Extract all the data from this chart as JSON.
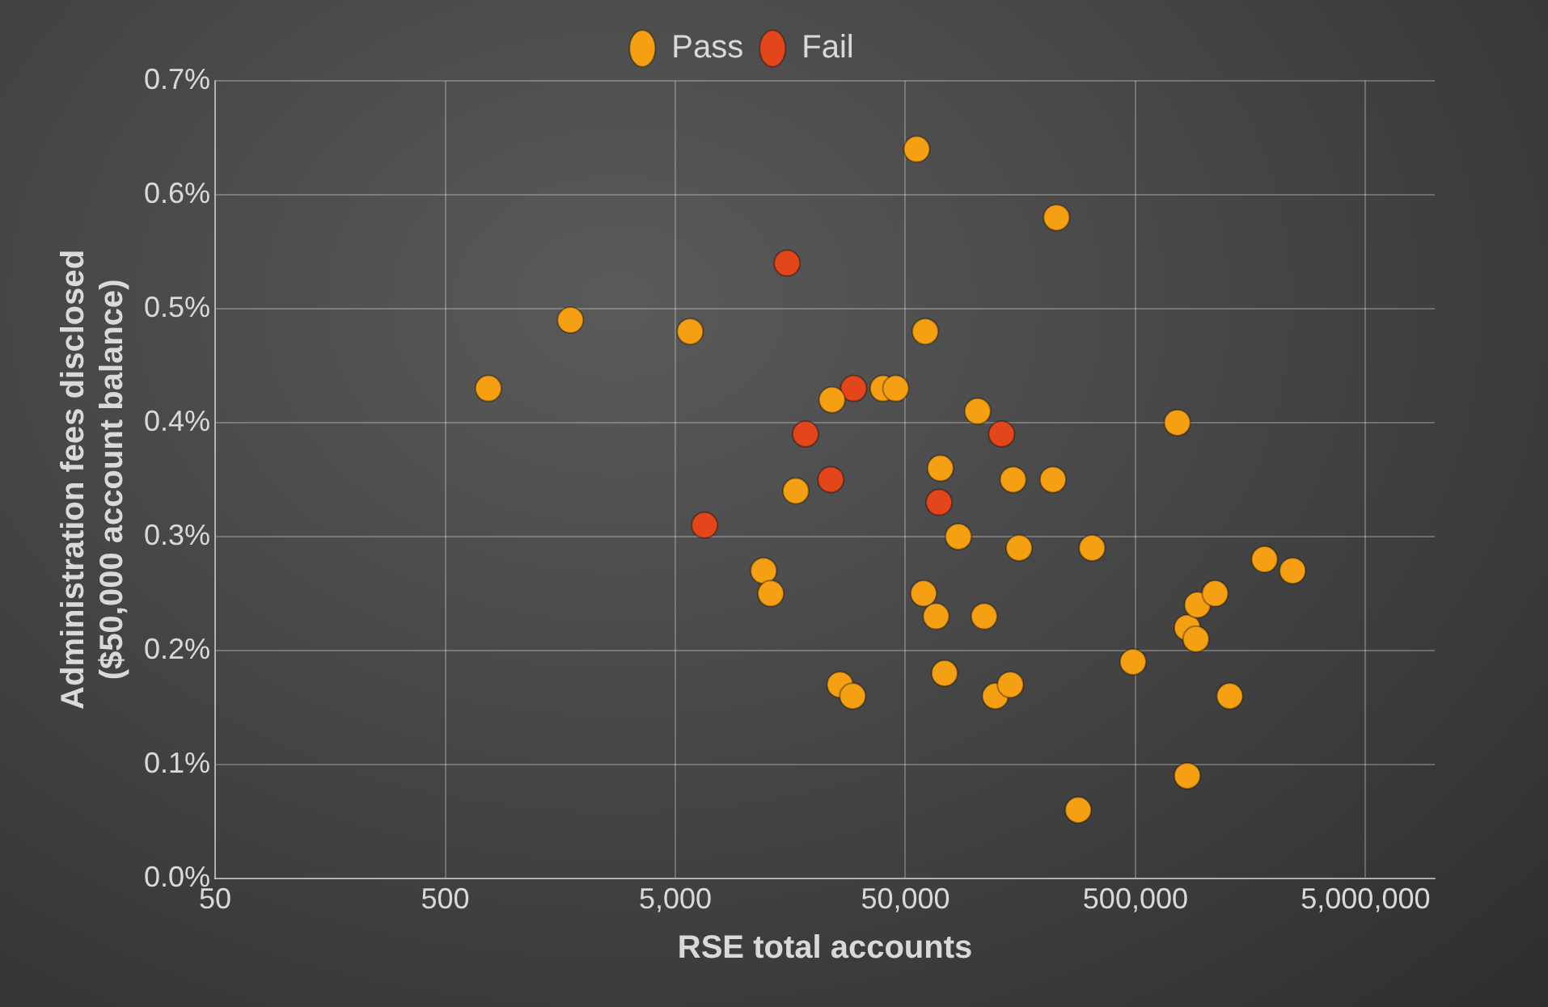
{
  "chart_data": {
    "type": "scatter",
    "xlabel": "RSE total accounts",
    "ylabel": "Administration fees disclosed ($50,000 account balance)",
    "log": "x",
    "xlim": [
      50,
      10000000
    ],
    "xticks": [
      50,
      500,
      {
        "value": 5000,
        "label": "5,000"
      },
      {
        "value": 50000,
        "label": "50,000"
      },
      {
        "value": 500000,
        "label": "500,000"
      },
      {
        "value": 5000000,
        "label": "5,000,000"
      }
    ],
    "ylim": [
      0,
      0.7
    ],
    "yticks": [
      {
        "value": 0,
        "label": "0.0%"
      },
      {
        "value": 0.1,
        "label": "0.1%"
      },
      {
        "value": 0.2,
        "label": "0.2%"
      },
      {
        "value": 0.3,
        "label": "0.3%"
      },
      {
        "value": 0.4,
        "label": "0.4%"
      },
      {
        "value": 0.5,
        "label": "0.5%"
      },
      {
        "value": 0.6,
        "label": "0.6%"
      },
      {
        "value": 0.7,
        "label": "0.7%"
      }
    ],
    "grid": true,
    "legend": "top",
    "marker": "circle",
    "series": [
      {
        "name": "Pass",
        "color": "#f5a012",
        "x": [
          770,
          1750,
          5800,
          12100,
          13000,
          16700,
          26000,
          29500,
          24000,
          40000,
          45400,
          56000,
          61000,
          71000,
          103000,
          147000,
          219000,
          227000,
          760000,
          85000,
          156000,
          324000,
          60000,
          68000,
          110000,
          74000,
          123000,
          143000,
          488000,
          282000,
          840000,
          1285000,
          1820000,
          2410000,
          840000,
          916000,
          930000,
          1110000
        ],
        "values": [
          0.43,
          0.49,
          0.48,
          0.27,
          0.25,
          0.34,
          0.17,
          0.16,
          0.42,
          0.43,
          0.43,
          0.64,
          0.48,
          0.36,
          0.41,
          0.35,
          0.35,
          0.58,
          0.4,
          0.3,
          0.29,
          0.29,
          0.25,
          0.23,
          0.23,
          0.18,
          0.16,
          0.17,
          0.19,
          0.06,
          0.09,
          0.16,
          0.28,
          0.27,
          0.22,
          0.21,
          0.24,
          0.25
        ]
      },
      {
        "name": "Fail",
        "color": "#e2461a",
        "x": [
          15300,
          29800,
          18400,
          23700,
          6700,
          131000,
          70000
        ],
        "values": [
          0.54,
          0.43,
          0.39,
          0.35,
          0.31,
          0.39,
          0.33
        ]
      }
    ]
  }
}
